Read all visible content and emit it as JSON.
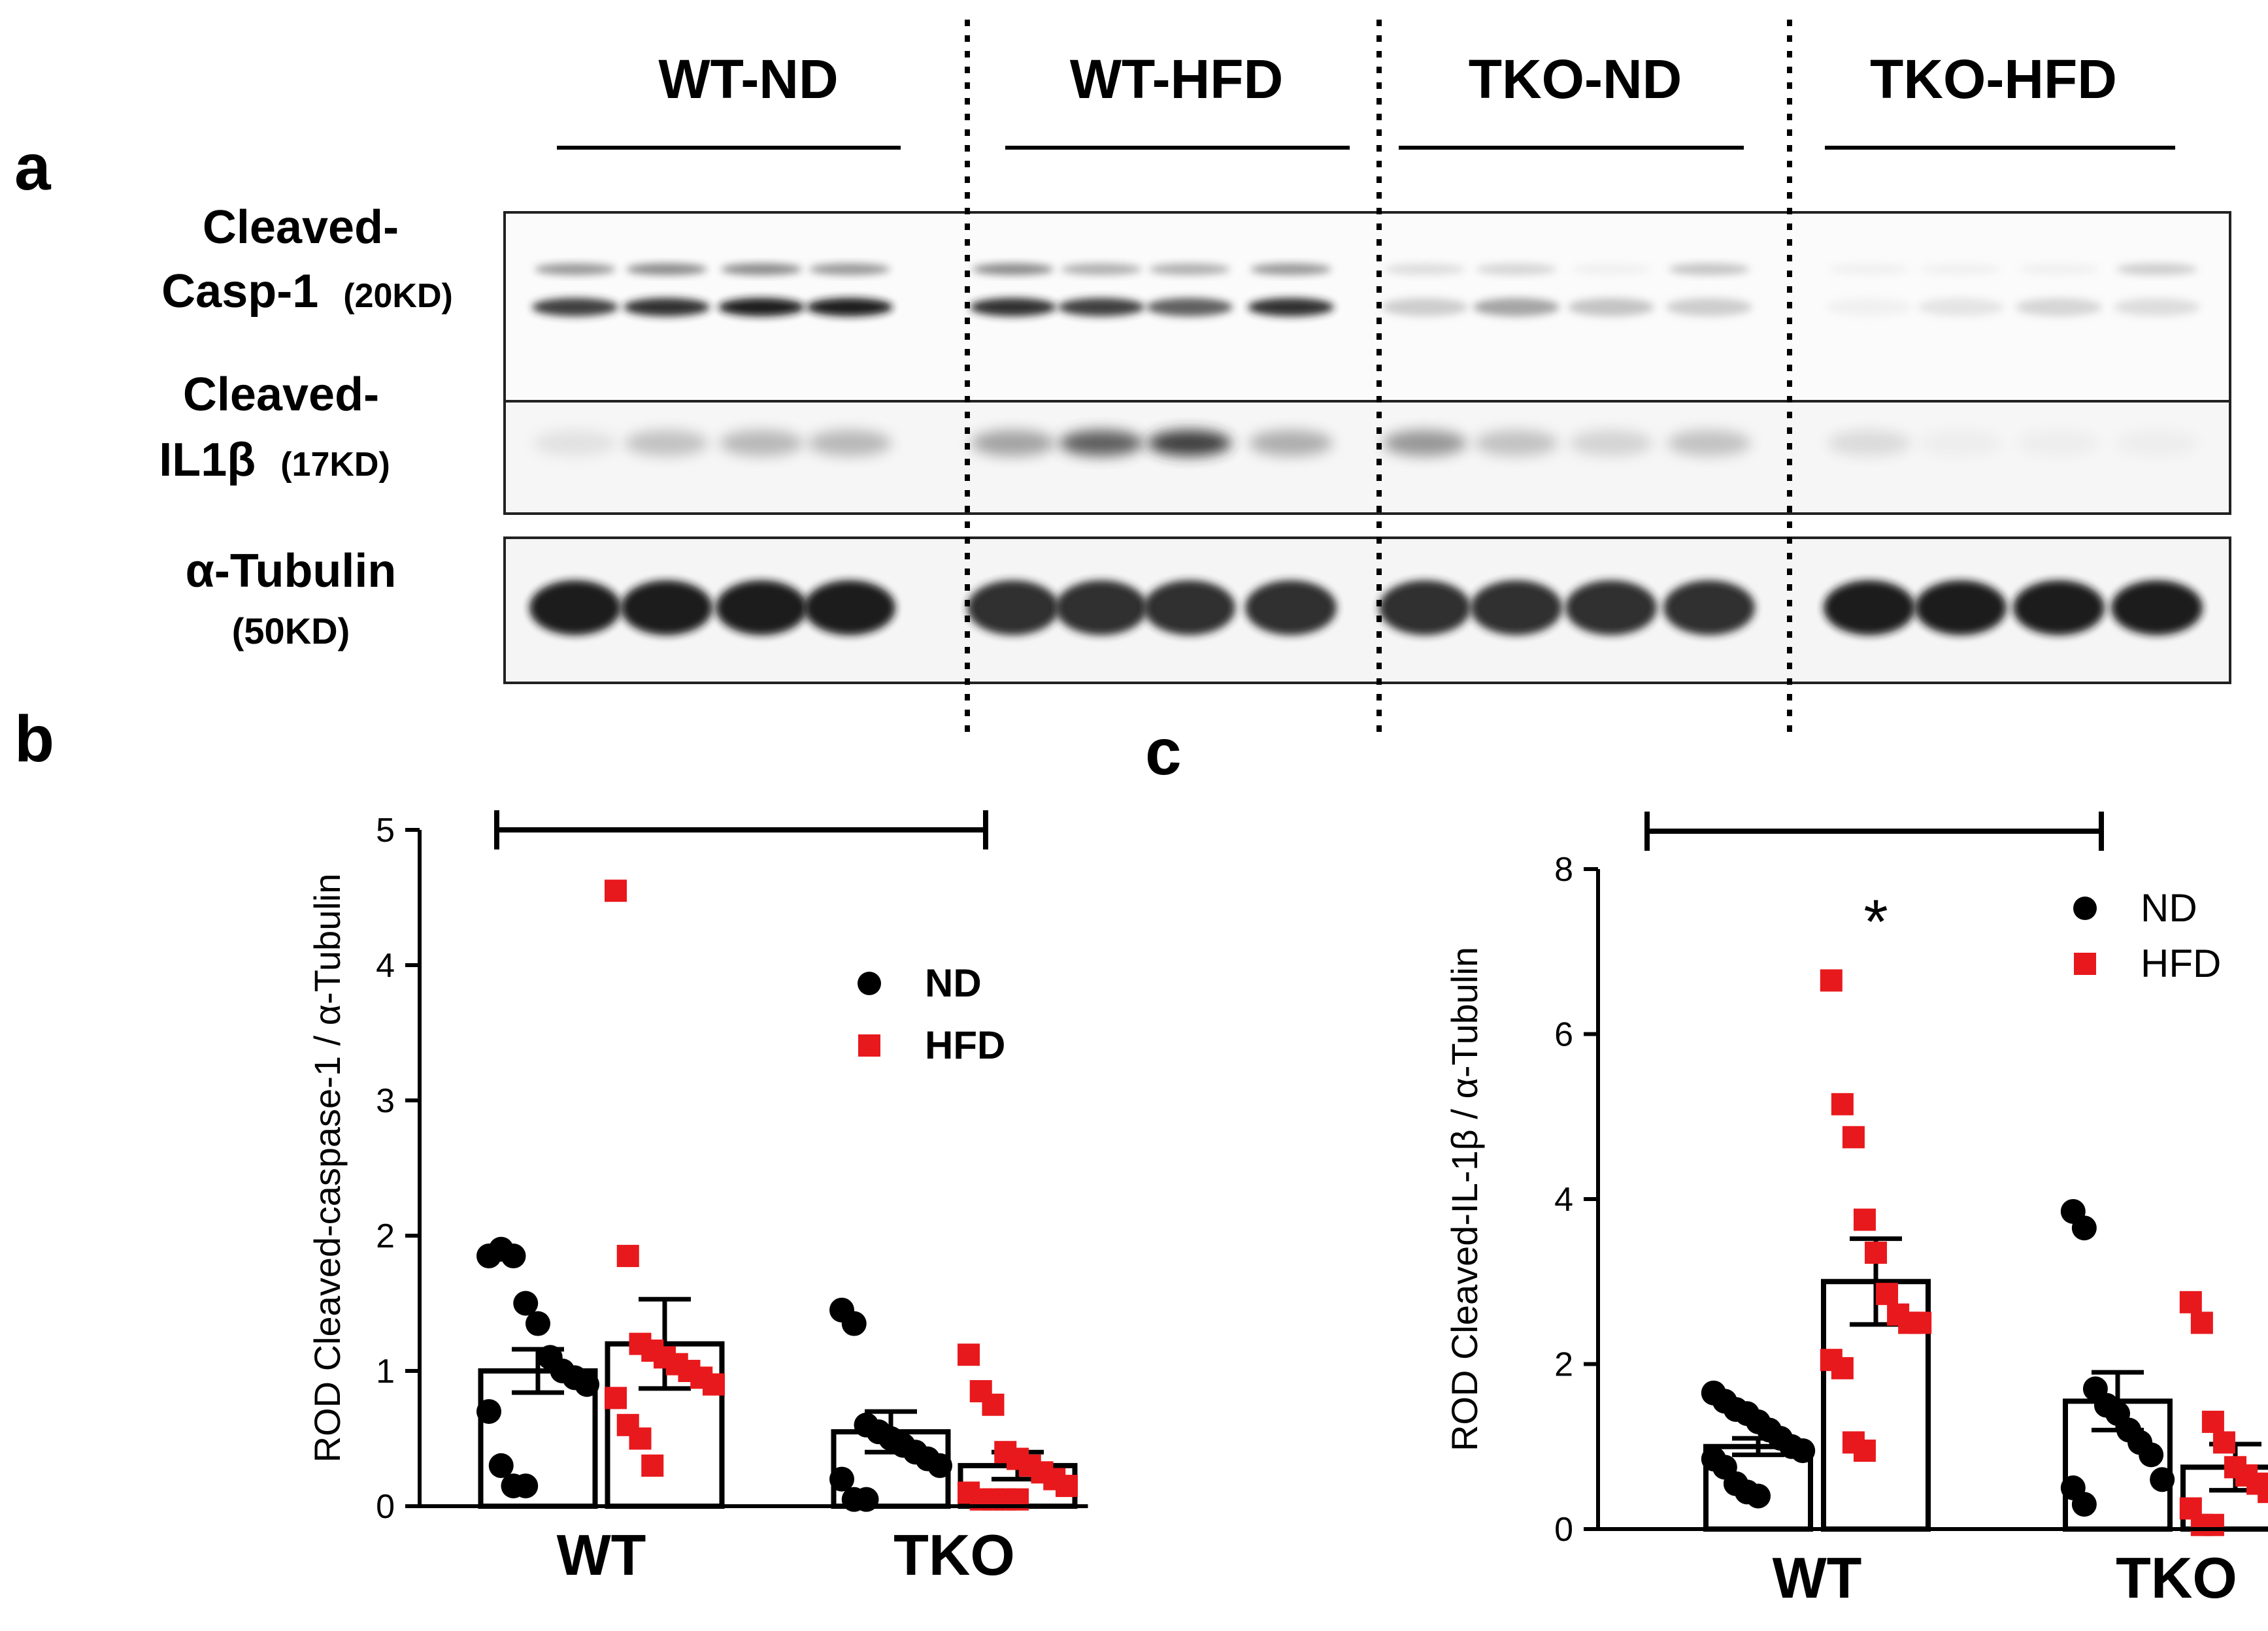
{
  "panel_labels": {
    "a": "a",
    "b": "b",
    "c": "c"
  },
  "blot": {
    "groups": [
      "WT-ND",
      "WT-HFD",
      "TKO-ND",
      "TKO-HFD"
    ],
    "rows": [
      {
        "name": "Cleaved-",
        "name2": "Casp-1",
        "kd": "(20KD)"
      },
      {
        "name": "Cleaved-",
        "name2": "IL1β",
        "kd": "(17KD)"
      },
      {
        "name": "α-Tubulin",
        "name2": "",
        "kd": "(50KD)"
      }
    ],
    "lanes_per_group": 4,
    "casp1_upper_band": [
      0.55,
      0.6,
      0.6,
      0.55,
      0.6,
      0.45,
      0.45,
      0.55,
      0.2,
      0.25,
      0.05,
      0.35,
      0.05,
      0.05,
      0.05,
      0.3
    ],
    "casp1_lower_band": [
      0.85,
      0.9,
      0.95,
      0.95,
      0.9,
      0.85,
      0.75,
      0.9,
      0.3,
      0.5,
      0.35,
      0.3,
      0.05,
      0.15,
      0.25,
      0.2
    ],
    "il1b_band": [
      0.15,
      0.35,
      0.4,
      0.4,
      0.5,
      0.75,
      0.85,
      0.45,
      0.55,
      0.35,
      0.25,
      0.35,
      0.2,
      0.05,
      0.05,
      0.05
    ],
    "tubulin_band": [
      0.95,
      0.95,
      0.95,
      0.95,
      0.9,
      0.9,
      0.9,
      0.9,
      0.9,
      0.9,
      0.9,
      0.9,
      0.95,
      0.95,
      0.95,
      0.95
    ]
  },
  "chart_data": [
    {
      "type": "bar",
      "panel": "b",
      "ylabel": "ROD Cleaved-caspase-1 / α-Tubulin",
      "categories": [
        "WT",
        "TKO"
      ],
      "ylim": [
        0,
        5
      ],
      "yticks": [
        "0",
        "1",
        "2",
        "3",
        "4",
        "5"
      ],
      "legend": {
        "placement": "top-right",
        "entries": [
          "ND",
          "HFD"
        ]
      },
      "colors": {
        "ND": "#000000",
        "HFD": "#e8191c"
      },
      "series": [
        {
          "name": "ND",
          "means": [
            1.0,
            0.55
          ],
          "sem": [
            0.16,
            0.15
          ],
          "points": [
            [
              1.85,
              1.9,
              1.85,
              1.5,
              1.35,
              1.1,
              1.0,
              0.95,
              0.9,
              0.7,
              0.3,
              0.15,
              0.15
            ],
            [
              1.45,
              1.35,
              0.6,
              0.55,
              0.5,
              0.45,
              0.4,
              0.35,
              0.3,
              0.2,
              0.05,
              0.05
            ]
          ]
        },
        {
          "name": "HFD",
          "means": [
            1.2,
            0.3
          ],
          "sem": [
            0.33,
            0.1
          ],
          "points": [
            [
              4.55,
              1.85,
              1.2,
              1.15,
              1.1,
              1.05,
              1.0,
              0.95,
              0.9,
              0.8,
              0.6,
              0.5,
              0.3
            ],
            [
              1.12,
              0.85,
              0.75,
              0.4,
              0.35,
              0.3,
              0.25,
              0.2,
              0.15,
              0.1,
              0.05,
              0.05,
              0.05,
              0.05
            ]
          ]
        }
      ],
      "bracket": {
        "from": "WT",
        "to": "TKO",
        "y": 5
      }
    },
    {
      "type": "bar",
      "panel": "c",
      "ylabel": "ROD Cleaved-IL-1β / α-Tubulin",
      "categories": [
        "WT",
        "TKO"
      ],
      "ylim": [
        0,
        8
      ],
      "yticks": [
        "0",
        "2",
        "4",
        "6",
        "8"
      ],
      "legend": {
        "placement": "top-right",
        "entries": [
          "ND",
          "HFD"
        ]
      },
      "colors": {
        "ND": "#000000",
        "HFD": "#e8191c"
      },
      "annotation": "*",
      "series": [
        {
          "name": "ND",
          "means": [
            1.0,
            1.55
          ],
          "sem": [
            0.1,
            0.35
          ],
          "points": [
            [
              1.65,
              1.55,
              1.45,
              1.4,
              1.3,
              1.2,
              1.1,
              1.0,
              0.95,
              0.85,
              0.75,
              0.55,
              0.45,
              0.4
            ],
            [
              3.85,
              3.65,
              1.7,
              1.5,
              1.4,
              1.2,
              1.05,
              0.9,
              0.6,
              0.5,
              0.3
            ]
          ]
        },
        {
          "name": "HFD",
          "means": [
            3.0,
            0.75
          ],
          "sem": [
            0.52,
            0.28
          ],
          "points": [
            [
              6.65,
              5.15,
              4.75,
              3.75,
              3.35,
              2.85,
              2.6,
              2.5,
              2.5,
              2.05,
              1.95,
              1.05,
              0.95
            ],
            [
              2.75,
              2.5,
              1.3,
              1.05,
              0.75,
              0.65,
              0.55,
              0.45,
              0.35,
              0.25,
              0.05,
              0.05
            ]
          ]
        }
      ],
      "bracket": {
        "from": "WT",
        "to": "TKO",
        "y": 8
      }
    }
  ]
}
